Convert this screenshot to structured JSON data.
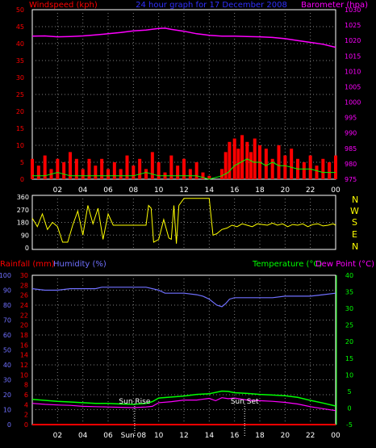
{
  "header": {
    "title": "24 hour graph for 17 December 2008",
    "left_label": "Windspeed (kph)",
    "right_label": "Barometer (hpa)"
  },
  "wind_dir_compass": [
    "N",
    "W",
    "S",
    "E",
    "N"
  ],
  "lower_header": {
    "rainfall_label": "Rainfall (mm)",
    "humidity_label": "Humidity (%)",
    "temperature_label": "Temperature (°C)",
    "dewpoint_label": "Dew Point (°C)"
  },
  "sun": {
    "rise_label": "Sun Rise",
    "set_label": "Sun Set",
    "rise_hour": 8.1,
    "set_hour": 16.8
  },
  "x_ticks": [
    "02",
    "04",
    "06",
    "08",
    "10",
    "12",
    "14",
    "16",
    "18",
    "20",
    "22",
    "00"
  ],
  "x_ticks_bottom": [
    "02",
    "04",
    "06",
    "Sun 08",
    "10",
    "12",
    "14",
    "16",
    "18",
    "20",
    "22",
    "00"
  ],
  "colors": {
    "wind": "#ff0000",
    "gust": "#ff0000",
    "barometer": "#ff00ff",
    "wind_dir": "#ffff00",
    "humidity": "#7070ff",
    "temperature": "#00ff00",
    "dewpoint": "#ff00ff",
    "rainfall": "#ff0000",
    "grid": "#7f7f7f",
    "axis_green": "#00ff00",
    "compass": "#ffff00"
  },
  "chart_data": [
    {
      "type": "line",
      "name": "wind-barometer",
      "x_unit": "hour",
      "x_range": [
        0,
        24
      ],
      "ylim_left": [
        0,
        50
      ],
      "yticks_left": [
        0,
        5,
        10,
        15,
        20,
        25,
        30,
        35,
        40,
        45,
        50
      ],
      "ylim_right": [
        975,
        1030
      ],
      "yticks_right": [
        975,
        980,
        985,
        990,
        995,
        1000,
        1005,
        1010,
        1015,
        1020,
        1025,
        1030
      ],
      "series": [
        {
          "name": "Barometer (hpa)",
          "axis": "right",
          "x": [
            0,
            1,
            2,
            3,
            4,
            5,
            6,
            7,
            8,
            9,
            10,
            10.5,
            11,
            12,
            13,
            14,
            15,
            16,
            17,
            18,
            19,
            20,
            21,
            22,
            23,
            24
          ],
          "y": [
            1021.4,
            1021.5,
            1021.2,
            1021.3,
            1021.5,
            1021.8,
            1022.2,
            1022.6,
            1023.1,
            1023.4,
            1023.9,
            1024.0,
            1023.6,
            1023.0,
            1022.2,
            1021.7,
            1021.4,
            1021.4,
            1021.3,
            1021.2,
            1021.0,
            1020.6,
            1020.0,
            1019.4,
            1018.8,
            1017.8
          ]
        },
        {
          "name": "Gust",
          "axis": "left",
          "x": [
            0,
            0.5,
            1,
            1.5,
            2,
            2.5,
            3,
            3.5,
            4,
            4.5,
            5,
            5.5,
            6,
            6.5,
            7,
            7.5,
            8,
            8.5,
            9,
            9.5,
            10,
            10.5,
            11,
            11.5,
            12,
            12.5,
            13,
            13.5,
            14,
            14.5,
            15,
            15.3,
            15.6,
            16,
            16.3,
            16.6,
            17,
            17.3,
            17.6,
            18,
            18.5,
            19,
            19.5,
            20,
            20.5,
            21,
            21.5,
            22,
            22.5,
            23,
            23.5,
            24
          ],
          "y": [
            6,
            4,
            7,
            3,
            6,
            5,
            8,
            6,
            3,
            6,
            4,
            6,
            3,
            5,
            3,
            7,
            4,
            6,
            3,
            8,
            5,
            2,
            7,
            4,
            6,
            3,
            5,
            2,
            1,
            0,
            3,
            8,
            11,
            12,
            9,
            13,
            11,
            8,
            12,
            10,
            9,
            6,
            10,
            7,
            9,
            6,
            5,
            7,
            4,
            6,
            5,
            7
          ]
        },
        {
          "name": "Windspeed",
          "axis": "left",
          "x": [
            0,
            1,
            2,
            3,
            4,
            5,
            6,
            7,
            8,
            9,
            10,
            11,
            12,
            13,
            14,
            15,
            15.5,
            16,
            16.5,
            17,
            17.5,
            18,
            18.5,
            19,
            19.5,
            20,
            21,
            22,
            23,
            24
          ],
          "y": [
            1,
            1,
            2,
            1,
            1,
            1,
            1,
            1,
            1,
            2,
            1,
            1,
            1,
            1,
            0,
            1,
            2,
            4,
            5,
            6,
            5,
            5,
            4,
            5,
            4,
            4,
            3,
            3,
            2,
            2
          ]
        }
      ]
    },
    {
      "type": "line",
      "name": "wind-direction",
      "x_unit": "hour",
      "ylim": [
        0,
        360
      ],
      "yticks": [
        0,
        90,
        180,
        270,
        360
      ],
      "series": [
        {
          "name": "Wind Direction",
          "x": [
            0,
            0.4,
            0.8,
            1.2,
            1.6,
            2,
            2.4,
            2.8,
            3.2,
            3.6,
            4,
            4.4,
            4.8,
            5.2,
            5.6,
            6,
            6.4,
            6.8,
            7.2,
            7.6,
            8,
            8.4,
            8.8,
            9,
            9.2,
            9.4,
            9.6,
            10,
            10.4,
            10.8,
            11,
            11.2,
            11.4,
            11.6,
            12,
            12.4,
            12.8,
            13.2,
            13.6,
            14,
            14.3,
            14.6,
            15,
            15.4,
            15.8,
            16.2,
            16.6,
            17,
            17.4,
            17.8,
            18.2,
            18.6,
            19,
            19.4,
            19.8,
            20.2,
            20.6,
            21,
            21.4,
            21.8,
            22.2,
            22.6,
            23,
            23.4,
            23.8,
            24
          ],
          "y": [
            210,
            150,
            240,
            130,
            180,
            150,
            40,
            40,
            160,
            260,
            90,
            300,
            170,
            280,
            60,
            240,
            160,
            160,
            160,
            160,
            160,
            160,
            160,
            160,
            300,
            280,
            40,
            60,
            200,
            70,
            60,
            300,
            30,
            300,
            350,
            350,
            350,
            350,
            350,
            350,
            90,
            100,
            130,
            140,
            160,
            150,
            170,
            160,
            150,
            170,
            165,
            160,
            175,
            160,
            170,
            150,
            165,
            160,
            170,
            150,
            165,
            170,
            155,
            160,
            170,
            160
          ]
        }
      ]
    },
    {
      "type": "line",
      "name": "rain-humidity-temperature",
      "x_unit": "hour",
      "ylim_humidity": [
        0,
        100
      ],
      "yticks_humidity": [
        0,
        10,
        20,
        30,
        40,
        50,
        60,
        70,
        80,
        90,
        100
      ],
      "ylim_rainfall": [
        0,
        30
      ],
      "yticks_rainfall": [
        0,
        2,
        4,
        6,
        8,
        10,
        12,
        14,
        16,
        18,
        20,
        22,
        24,
        26,
        28,
        30
      ],
      "ylim_temperature": [
        -5,
        40
      ],
      "yticks_temperature": [
        -5,
        0,
        5,
        10,
        15,
        20,
        25,
        30,
        35,
        40
      ],
      "series": [
        {
          "name": "Humidity (%)",
          "axis": "humidity",
          "x": [
            0,
            1,
            2,
            3,
            4,
            5,
            5.5,
            6,
            7,
            8,
            9,
            9.5,
            10,
            10.5,
            11,
            12,
            13,
            13.5,
            14,
            14.3,
            14.6,
            15,
            15.3,
            15.6,
            16,
            16.5,
            17,
            18,
            19,
            20,
            21,
            22,
            23,
            24
          ],
          "y": [
            91,
            90,
            90,
            91,
            91,
            91,
            92,
            92,
            92,
            92,
            92,
            91,
            90,
            88,
            88,
            88,
            87,
            86,
            84,
            82,
            80,
            79,
            81,
            84,
            85,
            85,
            85,
            85,
            85,
            86,
            86,
            86,
            87,
            88
          ]
        },
        {
          "name": "Temperature (°C)",
          "axis": "temperature",
          "x": [
            0,
            1,
            2,
            3,
            4,
            5,
            6,
            7,
            8,
            9,
            9.5,
            10,
            11,
            12,
            13,
            14,
            15,
            15.5,
            16,
            17,
            18,
            19,
            20,
            21,
            22,
            23,
            24
          ],
          "y": [
            2.6,
            2.3,
            2.0,
            1.8,
            1.6,
            1.4,
            1.4,
            1.2,
            1.1,
            1.4,
            1.9,
            3.0,
            3.3,
            3.6,
            4.1,
            4.3,
            5.1,
            5.0,
            4.6,
            4.4,
            4.1,
            3.9,
            3.7,
            3.2,
            2.3,
            1.5,
            0.6
          ]
        },
        {
          "name": "Dew Point (°C)",
          "axis": "temperature",
          "x": [
            0,
            1,
            2,
            3,
            4,
            5,
            6,
            7,
            8,
            9,
            9.5,
            10,
            11,
            12,
            13,
            14,
            14.5,
            15,
            15.5,
            16,
            17,
            18,
            19,
            20,
            21,
            22,
            23,
            24
          ],
          "y": [
            1.4,
            1.1,
            0.9,
            0.8,
            0.5,
            0.4,
            0.3,
            0.2,
            0.1,
            0.3,
            0.5,
            1.6,
            1.9,
            2.4,
            2.4,
            2.9,
            2.2,
            3.1,
            2.8,
            3.0,
            2.4,
            2.2,
            2.0,
            1.7,
            1.2,
            0.4,
            -0.2,
            -0.8
          ]
        },
        {
          "name": "Rainfall (mm)",
          "axis": "rainfall",
          "x": [
            0,
            24
          ],
          "y": [
            0,
            0
          ]
        }
      ]
    }
  ]
}
